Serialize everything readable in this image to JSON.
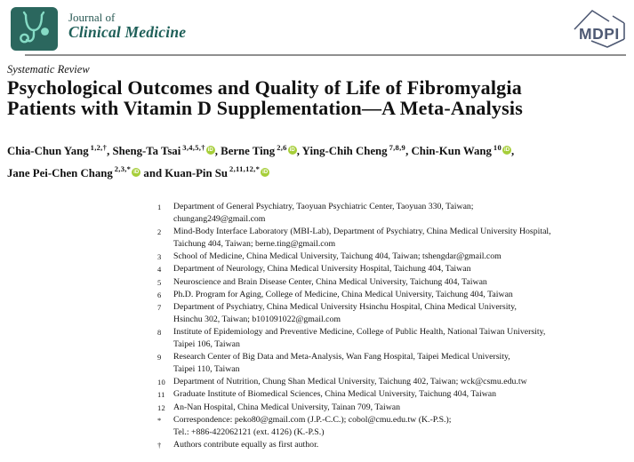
{
  "header": {
    "journal_prefix": "Journal of",
    "journal_name": "Clinical Medicine",
    "logo_bg": "#2b675e",
    "logo_fg": "#86dcc6",
    "brand_text_color": "#1e5f58",
    "divider_color": "#8f8f8f",
    "mdpi": {
      "label": "MDPI",
      "color": "#4e5973"
    }
  },
  "article": {
    "section_label": "Systematic Review",
    "title": "Psychological Outcomes and Quality of Life of Fibromyalgia\nPatients with Vitamin D Supplementation—A Meta-Analysis"
  },
  "orcid": {
    "label": "iD",
    "color": "#a6ce39"
  },
  "authors": [
    {
      "name": "Chia-Chun Yang",
      "sup": "1,2,†",
      "orcid": false,
      "sep": ", ",
      "break_after": false
    },
    {
      "name": "Sheng-Ta Tsai",
      "sup": "3,4,5,†",
      "orcid": true,
      "sep": ", ",
      "break_after": false
    },
    {
      "name": "Berne Ting",
      "sup": "2,6",
      "orcid": true,
      "sep": ", ",
      "break_after": false
    },
    {
      "name": "Ying-Chih Cheng",
      "sup": "7,8,9",
      "orcid": false,
      "sep": ", ",
      "break_after": false
    },
    {
      "name": "Chin-Kun Wang",
      "sup": "10",
      "orcid": true,
      "sep": ",",
      "break_after": true
    },
    {
      "name": "Jane Pei-Chen Chang",
      "sup": "2,3,*",
      "orcid": true,
      "sep": " and ",
      "break_after": false
    },
    {
      "name": "Kuan-Pin Su",
      "sup": "2,11,12,*",
      "orcid": true,
      "sep": "",
      "break_after": false
    }
  ],
  "affiliations": [
    {
      "marker": "1",
      "text": "Department of General Psychiatry, Taoyuan Psychiatric Center, Taoyuan 330, Taiwan;\nchungang249@gmail.com"
    },
    {
      "marker": "2",
      "text": "Mind-Body Interface Laboratory (MBI-Lab), Department of Psychiatry, China Medical University Hospital,\nTaichung 404, Taiwan; berne.ting@gmail.com"
    },
    {
      "marker": "3",
      "text": "School of Medicine, China Medical University, Taichung 404, Taiwan; tshengdar@gmail.com"
    },
    {
      "marker": "4",
      "text": "Department of Neurology, China Medical University Hospital, Taichung 404, Taiwan"
    },
    {
      "marker": "5",
      "text": "Neuroscience and Brain Disease Center, China Medical University, Taichung 404, Taiwan"
    },
    {
      "marker": "6",
      "text": "Ph.D. Program for Aging, College of Medicine, China Medical University, Taichung 404, Taiwan"
    },
    {
      "marker": "7",
      "text": "Department of Psychiatry, China Medical University Hsinchu Hospital, China Medical University,\nHsinchu 302, Taiwan; b101091022@gmail.com"
    },
    {
      "marker": "8",
      "text": "Institute of Epidemiology and Preventive Medicine, College of Public Health, National Taiwan University,\nTaipei 106, Taiwan"
    },
    {
      "marker": "9",
      "text": "Research Center of Big Data and Meta-Analysis, Wan Fang Hospital, Taipei Medical University,\nTaipei 110, Taiwan"
    },
    {
      "marker": "10",
      "text": "Department of Nutrition, Chung Shan Medical University, Taichung 402, Taiwan; wck@csmu.edu.tw"
    },
    {
      "marker": "11",
      "text": "Graduate Institute of Biomedical Sciences, China Medical University, Taichung 404, Taiwan"
    },
    {
      "marker": "12",
      "text": "An-Nan Hospital, China Medical University, Tainan 709, Taiwan"
    },
    {
      "marker": "*",
      "text": "Correspondence: peko80@gmail.com (J.P.-C.C.); cobol@cmu.edu.tw (K.-P.S.);\nTel.: +886-422062121 (ext. 4126) (K.-P.S.)"
    },
    {
      "marker": "†",
      "text": "Authors contribute equally as first author."
    }
  ]
}
